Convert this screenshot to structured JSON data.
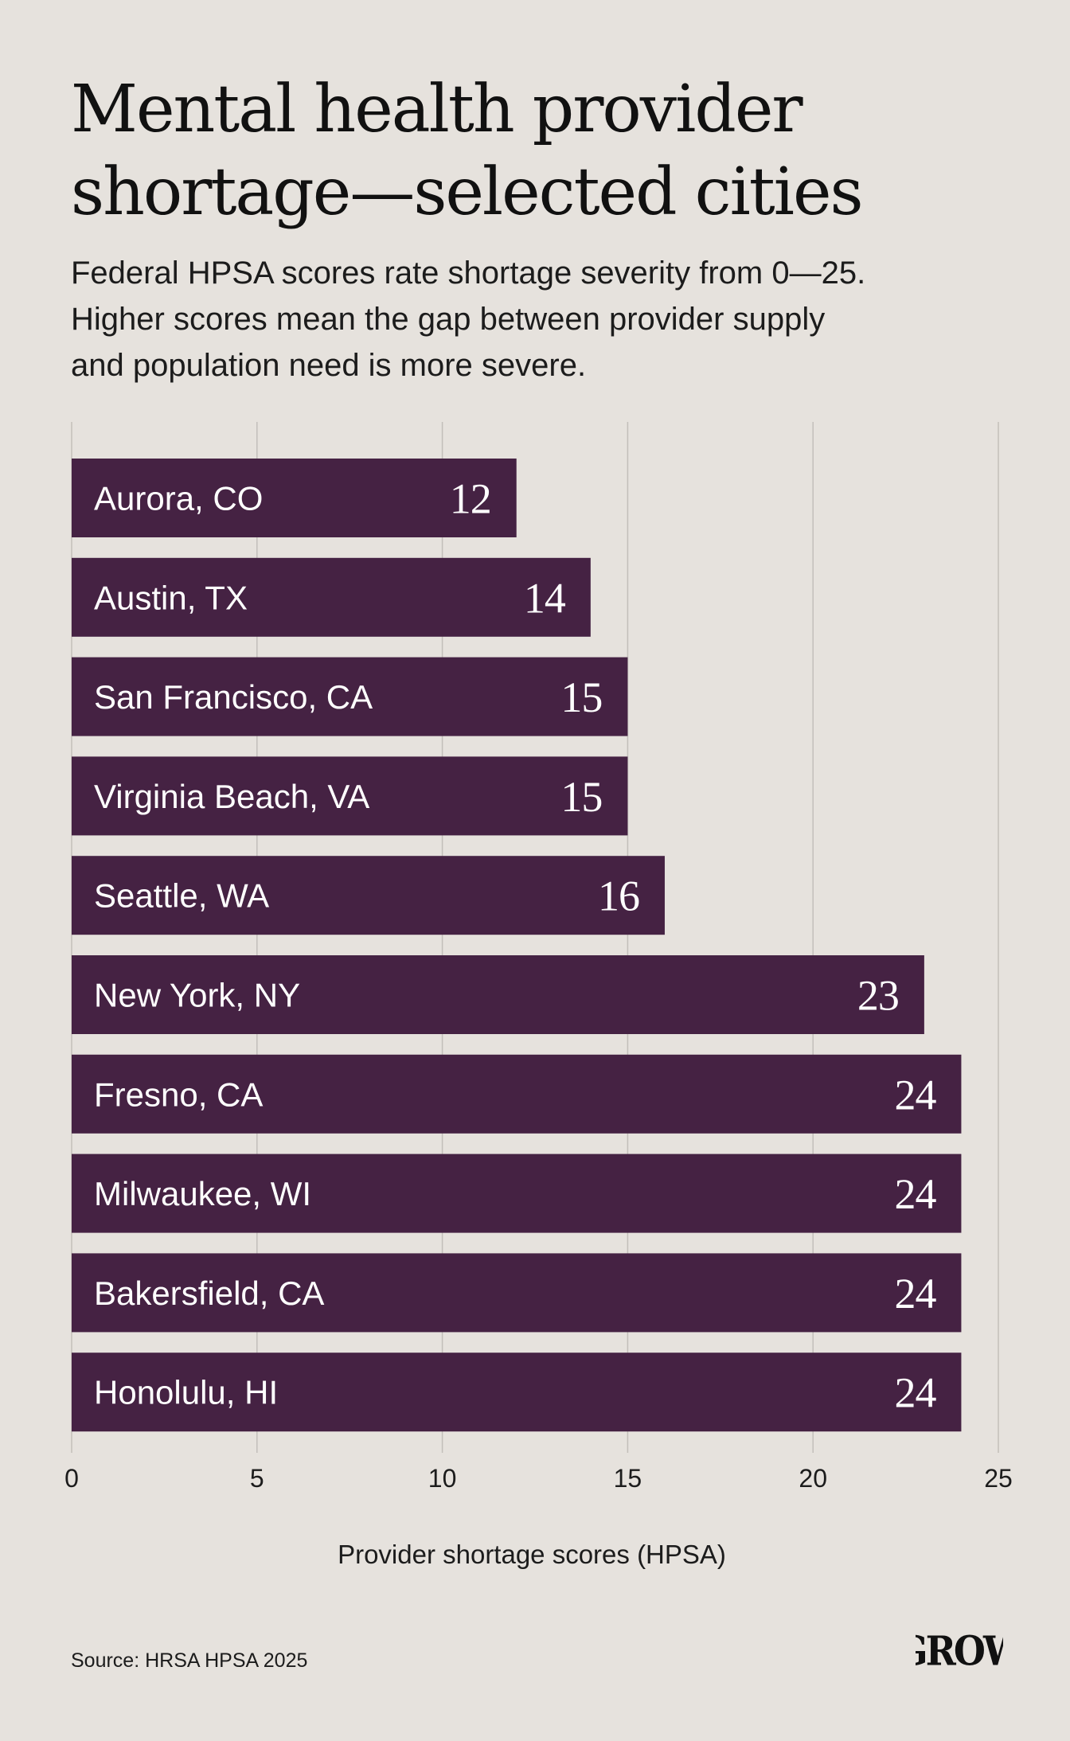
{
  "header": {
    "title_lines": [
      "Mental health provider",
      "shortage—selected cities"
    ],
    "subtitle_lines": [
      "Federal HPSA scores rate shortage severity from 0—25.",
      "Higher scores mean the gap between provider supply",
      "and population need is more severe."
    ]
  },
  "chart_data": {
    "type": "bar",
    "orientation": "horizontal",
    "title": "",
    "categories": [
      "Aurora, CO",
      "Austin, TX",
      "San Francisco, CA",
      "Virginia Beach, VA",
      "Seattle, WA",
      "New York, NY",
      "Fresno, CA",
      "Milwaukee, WI",
      "Bakersfield, CA",
      "Honolulu, HI"
    ],
    "values": [
      12,
      14,
      15,
      15,
      16,
      23,
      24,
      24,
      24,
      24
    ],
    "value_labels": [
      "12",
      "14",
      "15",
      "15",
      "16",
      "23",
      "24",
      "24",
      "24",
      "24"
    ],
    "xlim": [
      0,
      25
    ],
    "xticks": [
      0,
      5,
      10,
      15,
      20,
      25
    ],
    "xtick_labels": [
      "0",
      "5",
      "10",
      "15",
      "20",
      "25"
    ],
    "xlabel": "Provider shortage scores (HPSA)",
    "ylabel": "",
    "grid": true,
    "legend": "none",
    "bar_color": "#452243"
  },
  "footer": {
    "source": "Source: HRSA HPSA 2025",
    "logo_text": "GROW"
  },
  "colors": {
    "background": "#e6e2dd",
    "bar": "#452243",
    "text": "#161616"
  }
}
